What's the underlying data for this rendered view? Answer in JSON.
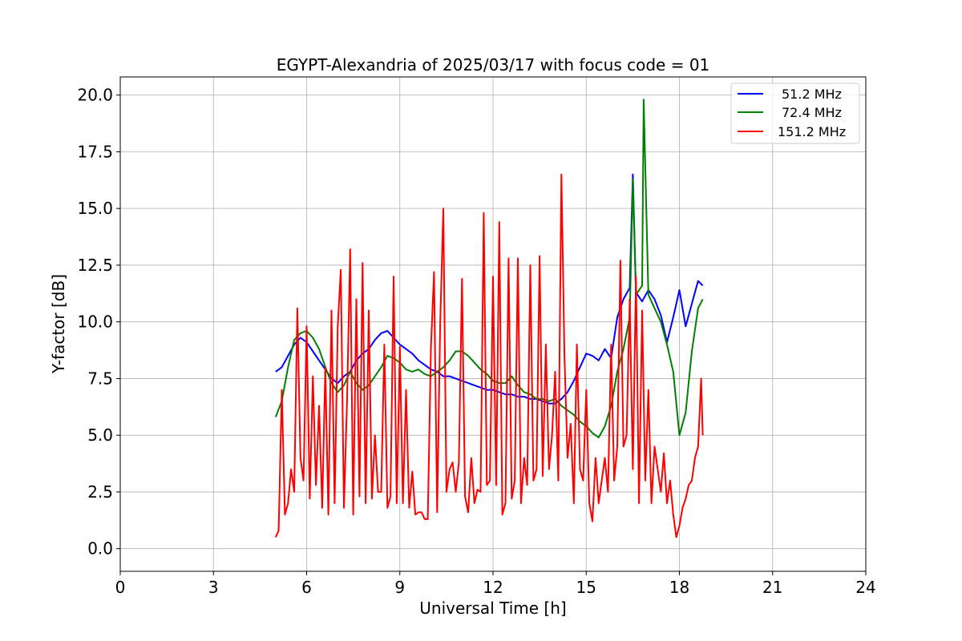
{
  "chart_data": {
    "type": "line",
    "title": "EGYPT-Alexandria of 2025/03/17 with focus code = 01",
    "xlabel": "Universal Time [h]",
    "ylabel": "Y-factor [dB]",
    "xlim": [
      0,
      24
    ],
    "ylim": [
      -1.0,
      20.8
    ],
    "xticks": [
      "0",
      "3",
      "6",
      "9",
      "12",
      "15",
      "18",
      "21",
      "24"
    ],
    "yticks": [
      "0.0",
      "2.5",
      "5.0",
      "7.5",
      "10.0",
      "12.5",
      "15.0",
      "17.5",
      "20.0"
    ],
    "grid": true,
    "legend_position": "top-right",
    "series": [
      {
        "name": "51.2 MHz",
        "color": "#0000ff",
        "x": [
          5.0,
          5.2,
          5.4,
          5.6,
          5.8,
          6.0,
          6.2,
          6.4,
          6.6,
          6.8,
          7.0,
          7.2,
          7.4,
          7.6,
          7.8,
          8.0,
          8.2,
          8.4,
          8.6,
          8.8,
          9.0,
          9.2,
          9.4,
          9.6,
          9.8,
          10.0,
          10.2,
          10.4,
          10.6,
          10.8,
          11.0,
          11.2,
          11.4,
          11.6,
          11.8,
          12.0,
          12.2,
          12.4,
          12.6,
          12.8,
          13.0,
          13.2,
          13.4,
          13.6,
          13.8,
          14.0,
          14.2,
          14.4,
          14.6,
          14.8,
          15.0,
          15.2,
          15.4,
          15.6,
          15.8,
          16.0,
          16.2,
          16.4,
          16.5,
          16.6,
          16.8,
          17.0,
          17.2,
          17.4,
          17.6,
          17.8,
          18.0,
          18.2,
          18.4,
          18.6,
          18.75
        ],
        "y": [
          7.8,
          8.0,
          8.5,
          9.0,
          9.3,
          9.1,
          8.7,
          8.3,
          7.9,
          7.5,
          7.3,
          7.6,
          7.8,
          8.3,
          8.6,
          8.8,
          9.2,
          9.5,
          9.6,
          9.3,
          9.0,
          8.8,
          8.6,
          8.3,
          8.1,
          7.9,
          7.8,
          7.6,
          7.6,
          7.5,
          7.4,
          7.3,
          7.2,
          7.1,
          7.0,
          7.0,
          6.9,
          6.8,
          6.8,
          6.7,
          6.7,
          6.6,
          6.6,
          6.5,
          6.4,
          6.4,
          6.6,
          6.9,
          7.4,
          8.0,
          8.6,
          8.5,
          8.3,
          8.8,
          8.4,
          10.2,
          11.0,
          11.5,
          16.5,
          11.3,
          10.9,
          11.4,
          11.0,
          10.3,
          9.1,
          10.2,
          11.4,
          9.8,
          10.8,
          11.8,
          11.6
        ]
      },
      {
        "name": "72.4 MHz",
        "color": "#008000",
        "x": [
          5.0,
          5.2,
          5.4,
          5.6,
          5.8,
          6.0,
          6.2,
          6.4,
          6.6,
          6.8,
          7.0,
          7.2,
          7.4,
          7.6,
          7.8,
          8.0,
          8.2,
          8.4,
          8.6,
          8.8,
          9.0,
          9.2,
          9.4,
          9.6,
          9.8,
          10.0,
          10.2,
          10.4,
          10.6,
          10.8,
          11.0,
          11.2,
          11.4,
          11.6,
          11.8,
          12.0,
          12.2,
          12.4,
          12.6,
          12.8,
          13.0,
          13.2,
          13.4,
          13.6,
          13.8,
          14.0,
          14.2,
          14.4,
          14.6,
          14.8,
          15.0,
          15.2,
          15.4,
          15.6,
          15.8,
          16.0,
          16.2,
          16.4,
          16.5,
          16.6,
          16.8,
          16.85,
          17.0,
          17.2,
          17.4,
          17.6,
          17.8,
          18.0,
          18.2,
          18.4,
          18.6,
          18.75
        ],
        "y": [
          5.8,
          6.5,
          8.0,
          9.2,
          9.5,
          9.6,
          9.3,
          8.8,
          8.0,
          7.3,
          6.9,
          7.2,
          7.8,
          7.3,
          7.0,
          7.2,
          7.6,
          8.0,
          8.5,
          8.4,
          8.2,
          7.9,
          7.8,
          7.9,
          7.7,
          7.6,
          7.8,
          8.0,
          8.3,
          8.7,
          8.7,
          8.5,
          8.2,
          7.9,
          7.7,
          7.4,
          7.3,
          7.3,
          7.6,
          7.2,
          6.9,
          6.8,
          6.6,
          6.6,
          6.5,
          6.6,
          6.3,
          6.1,
          5.9,
          5.6,
          5.4,
          5.1,
          4.9,
          5.4,
          6.3,
          7.8,
          8.8,
          10.2,
          16.3,
          11.2,
          11.6,
          19.8,
          11.2,
          10.6,
          10.0,
          9.0,
          7.8,
          5.0,
          6.0,
          8.7,
          10.6,
          11.0
        ]
      },
      {
        "name": "151.2 MHz",
        "color": "#ff0000",
        "x": [
          5.0,
          5.1,
          5.2,
          5.3,
          5.4,
          5.5,
          5.6,
          5.7,
          5.8,
          5.9,
          6.0,
          6.1,
          6.2,
          6.3,
          6.4,
          6.5,
          6.6,
          6.7,
          6.8,
          6.9,
          7.0,
          7.1,
          7.2,
          7.3,
          7.4,
          7.5,
          7.6,
          7.7,
          7.8,
          7.9,
          8.0,
          8.1,
          8.2,
          8.3,
          8.4,
          8.5,
          8.6,
          8.7,
          8.8,
          8.9,
          9.0,
          9.1,
          9.2,
          9.3,
          9.4,
          9.5,
          9.6,
          9.7,
          9.8,
          9.9,
          10.0,
          10.1,
          10.2,
          10.3,
          10.4,
          10.5,
          10.6,
          10.7,
          10.8,
          10.9,
          11.0,
          11.1,
          11.2,
          11.3,
          11.4,
          11.5,
          11.6,
          11.7,
          11.8,
          11.9,
          12.0,
          12.1,
          12.2,
          12.3,
          12.4,
          12.5,
          12.6,
          12.7,
          12.8,
          12.9,
          13.0,
          13.1,
          13.2,
          13.3,
          13.4,
          13.5,
          13.6,
          13.7,
          13.8,
          13.9,
          14.0,
          14.1,
          14.2,
          14.3,
          14.4,
          14.5,
          14.6,
          14.7,
          14.8,
          14.9,
          15.0,
          15.1,
          15.2,
          15.3,
          15.4,
          15.5,
          15.6,
          15.7,
          15.8,
          15.9,
          16.0,
          16.1,
          16.2,
          16.3,
          16.4,
          16.5,
          16.6,
          16.7,
          16.8,
          16.9,
          17.0,
          17.1,
          17.2,
          17.3,
          17.4,
          17.5,
          17.6,
          17.7,
          17.8,
          17.9,
          18.0,
          18.1,
          18.2,
          18.3,
          18.4,
          18.5,
          18.6,
          18.7,
          18.75
        ],
        "y": [
          0.5,
          0.8,
          7.0,
          1.5,
          2.0,
          3.5,
          2.5,
          10.6,
          4.0,
          3.0,
          9.8,
          2.2,
          7.6,
          2.8,
          6.3,
          1.8,
          8.0,
          1.5,
          10.5,
          2.0,
          9.8,
          12.3,
          1.8,
          6.5,
          13.2,
          1.5,
          11.0,
          2.3,
          12.6,
          2.0,
          10.5,
          2.2,
          5.0,
          2.5,
          2.5,
          9.0,
          1.8,
          2.3,
          12.0,
          2.0,
          8.9,
          2.0,
          7.0,
          1.8,
          3.4,
          1.5,
          1.6,
          1.6,
          1.3,
          1.3,
          8.8,
          12.2,
          1.6,
          9.9,
          15.0,
          2.5,
          3.5,
          3.8,
          2.5,
          3.8,
          11.9,
          2.3,
          1.6,
          4.0,
          2.0,
          2.6,
          2.5,
          14.8,
          2.8,
          3.0,
          12.0,
          2.8,
          14.4,
          1.5,
          2.0,
          12.8,
          2.2,
          3.0,
          12.8,
          2.0,
          4.0,
          2.8,
          12.5,
          3.0,
          3.5,
          12.9,
          3.2,
          9.0,
          3.5,
          5.0,
          7.8,
          3.0,
          16.5,
          8.5,
          4.0,
          5.5,
          2.0,
          9.0,
          3.5,
          3.0,
          7.0,
          2.0,
          1.2,
          4.0,
          2.0,
          3.0,
          4.0,
          2.5,
          9.0,
          3.0,
          4.5,
          12.7,
          4.5,
          5.0,
          11.0,
          3.5,
          12.0,
          2.0,
          10.5,
          3.0,
          7.0,
          2.0,
          4.5,
          3.5,
          2.5,
          4.2,
          2.0,
          3.0,
          1.5,
          0.5,
          1.0,
          1.8,
          2.2,
          2.8,
          3.0,
          4.0,
          4.5,
          7.5,
          5.0
        ]
      }
    ]
  }
}
